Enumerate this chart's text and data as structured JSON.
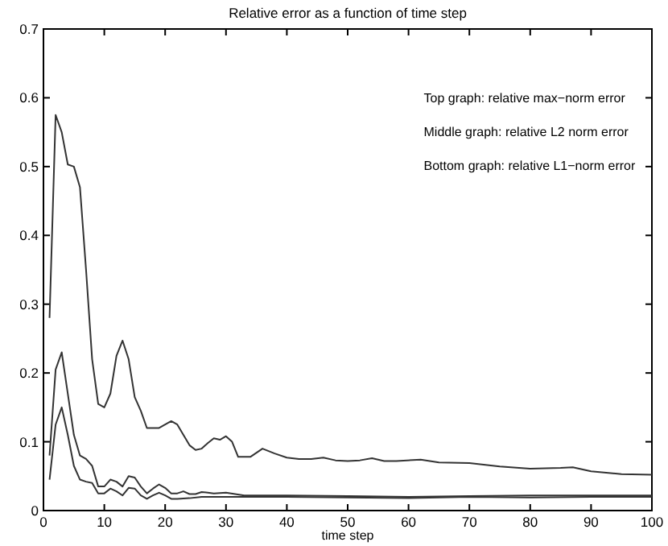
{
  "chart_data": {
    "type": "line",
    "title": "Relative error as a function of time step",
    "xlabel": "time step",
    "xlim": [
      0,
      100
    ],
    "xticks": [
      0,
      10,
      20,
      30,
      40,
      50,
      60,
      70,
      80,
      90,
      100
    ],
    "ylim": [
      0,
      0.7
    ],
    "yticks": [
      0,
      0.1,
      0.2,
      0.3,
      0.4,
      0.5,
      0.6,
      0.7
    ],
    "grid": false,
    "annotations": [
      "Top graph:  relative max−norm error",
      "Middle graph:  relative L2 norm error",
      "Bottom graph: relative L1−norm error"
    ],
    "series": [
      {
        "color": "#333333",
        "x": [
          1,
          2,
          3,
          4,
          5,
          6,
          7,
          8,
          9,
          10,
          11,
          12,
          13,
          14,
          15,
          16,
          17,
          18,
          19,
          20,
          21,
          22,
          23,
          24,
          25,
          26,
          27,
          28,
          29,
          30,
          31,
          32,
          33,
          34,
          36,
          38,
          40,
          42,
          44,
          46,
          48,
          50,
          52,
          54,
          56,
          58,
          62,
          65,
          70,
          75,
          80,
          85,
          87,
          90,
          95,
          100
        ],
        "values": [
          0.28,
          0.575,
          0.55,
          0.503,
          0.5,
          0.47,
          0.35,
          0.22,
          0.155,
          0.15,
          0.17,
          0.225,
          0.247,
          0.22,
          0.165,
          0.145,
          0.12,
          0.12,
          0.12,
          0.125,
          0.13,
          0.125,
          0.11,
          0.095,
          0.088,
          0.09,
          0.098,
          0.105,
          0.103,
          0.108,
          0.1,
          0.078,
          0.078,
          0.078,
          0.09,
          0.083,
          0.077,
          0.075,
          0.075,
          0.077,
          0.073,
          0.072,
          0.073,
          0.076,
          0.072,
          0.072,
          0.074,
          0.07,
          0.069,
          0.064,
          0.061,
          0.062,
          0.063,
          0.057,
          0.053,
          0.052
        ]
      },
      {
        "color": "#333333",
        "x": [
          1,
          2,
          3,
          4,
          5,
          6,
          7,
          8,
          9,
          10,
          11,
          12,
          13,
          14,
          15,
          16,
          17,
          18,
          19,
          20,
          21,
          22,
          23,
          24,
          25,
          26,
          27,
          28,
          30,
          33,
          40,
          50,
          60,
          70,
          80,
          90,
          100
        ],
        "values": [
          0.08,
          0.205,
          0.23,
          0.17,
          0.11,
          0.08,
          0.075,
          0.065,
          0.035,
          0.035,
          0.045,
          0.042,
          0.035,
          0.05,
          0.048,
          0.035,
          0.025,
          0.032,
          0.038,
          0.033,
          0.025,
          0.025,
          0.028,
          0.024,
          0.024,
          0.027,
          0.026,
          0.025,
          0.026,
          0.022,
          0.022,
          0.021,
          0.02,
          0.021,
          0.022,
          0.022,
          0.022
        ]
      },
      {
        "color": "#333333",
        "x": [
          1,
          2,
          3,
          4,
          5,
          6,
          7,
          8,
          9,
          10,
          11,
          12,
          13,
          14,
          15,
          16,
          17,
          18,
          19,
          20,
          21,
          22,
          24,
          26,
          30,
          40,
          50,
          60,
          70,
          80,
          90,
          100
        ],
        "values": [
          0.045,
          0.125,
          0.15,
          0.11,
          0.065,
          0.045,
          0.042,
          0.04,
          0.025,
          0.025,
          0.032,
          0.028,
          0.022,
          0.033,
          0.032,
          0.022,
          0.017,
          0.022,
          0.026,
          0.022,
          0.017,
          0.017,
          0.018,
          0.02,
          0.02,
          0.02,
          0.019,
          0.018,
          0.02,
          0.019,
          0.02,
          0.02
        ]
      }
    ]
  }
}
